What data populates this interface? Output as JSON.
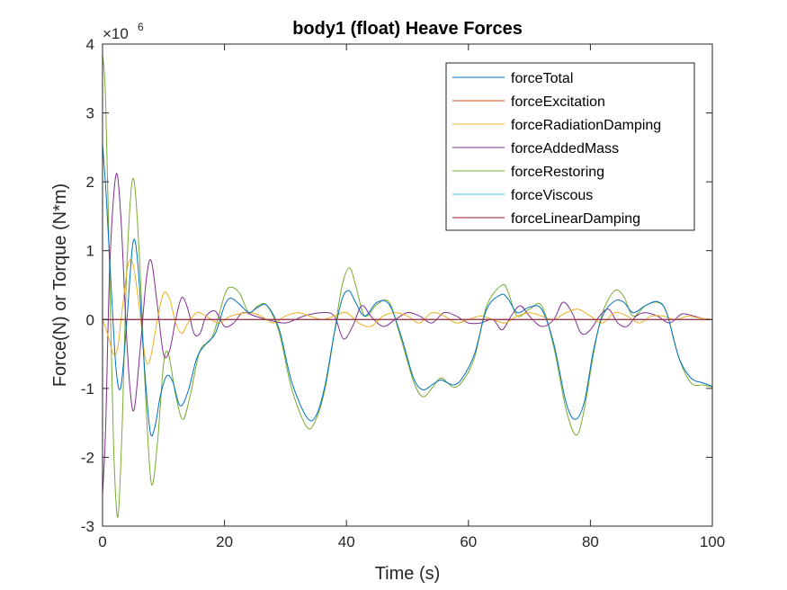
{
  "chart_data": {
    "type": "line",
    "title": "body1 (float) Heave  Forces",
    "xlabel": "Time (s)",
    "ylabel": "Force(N) or Torque (N*m)",
    "xlim": [
      0,
      100
    ],
    "ylim": [
      -3,
      4
    ],
    "y_exponent_label": "×10",
    "y_exponent_power": "6",
    "x_ticks": [
      {
        "value": 0,
        "label": "0"
      },
      {
        "value": 20,
        "label": "20"
      },
      {
        "value": 40,
        "label": "40"
      },
      {
        "value": 60,
        "label": "60"
      },
      {
        "value": 80,
        "label": "80"
      },
      {
        "value": 100,
        "label": "100"
      }
    ],
    "y_ticks": [
      {
        "value": -3,
        "label": "-3"
      },
      {
        "value": -2,
        "label": "-2"
      },
      {
        "value": -1,
        "label": "-1"
      },
      {
        "value": 0,
        "label": "0"
      },
      {
        "value": 1,
        "label": "1"
      },
      {
        "value": 2,
        "label": "2"
      },
      {
        "value": 3,
        "label": "3"
      },
      {
        "value": 4,
        "label": "4"
      }
    ],
    "grid": false,
    "legend_position": "top-right",
    "series": [
      {
        "name": "forceRestoring",
        "color": "#77AC30",
        "points": [
          [
            0,
            3.85
          ],
          [
            0.5,
            3.2
          ],
          [
            1.2,
            0.5
          ],
          [
            1.8,
            -1.8
          ],
          [
            2.5,
            -2.87
          ],
          [
            3.2,
            -1.6
          ],
          [
            4.0,
            0.8
          ],
          [
            5.0,
            2.05
          ],
          [
            6.0,
            1.0
          ],
          [
            7.0,
            -1.0
          ],
          [
            8.0,
            -2.38
          ],
          [
            9.0,
            -1.8
          ],
          [
            10.0,
            -0.65
          ],
          [
            10.8,
            -0.5
          ],
          [
            12.0,
            -1.1
          ],
          [
            13.2,
            -1.45
          ],
          [
            14.5,
            -1.05
          ],
          [
            16.0,
            -0.45
          ],
          [
            18.0,
            -0.25
          ],
          [
            20.0,
            0.35
          ],
          [
            21.0,
            0.47
          ],
          [
            22.5,
            0.38
          ],
          [
            24.0,
            0.1
          ],
          [
            25.5,
            0.2
          ],
          [
            27.0,
            0.2
          ],
          [
            29.0,
            -0.2
          ],
          [
            31.0,
            -1.0
          ],
          [
            33.5,
            -1.56
          ],
          [
            35.0,
            -1.45
          ],
          [
            36.5,
            -1.0
          ],
          [
            38.0,
            -0.2
          ],
          [
            39.3,
            0.5
          ],
          [
            40.5,
            0.75
          ],
          [
            41.5,
            0.5
          ],
          [
            43.0,
            0.05
          ],
          [
            45.0,
            0.22
          ],
          [
            47.0,
            0.25
          ],
          [
            49.0,
            -0.3
          ],
          [
            51.0,
            -0.9
          ],
          [
            52.5,
            -1.12
          ],
          [
            54.0,
            -1.0
          ],
          [
            55.5,
            -0.85
          ],
          [
            57.5,
            -0.98
          ],
          [
            59.0,
            -0.9
          ],
          [
            61.0,
            -0.55
          ],
          [
            63.0,
            0.2
          ],
          [
            65.5,
            0.5
          ],
          [
            66.5,
            0.4
          ],
          [
            68.0,
            0.05
          ],
          [
            70.0,
            0.15
          ],
          [
            72.0,
            0.2
          ],
          [
            74.0,
            -0.4
          ],
          [
            76.0,
            -1.3
          ],
          [
            77.7,
            -1.68
          ],
          [
            79.0,
            -1.3
          ],
          [
            80.5,
            -0.5
          ],
          [
            82.0,
            0.1
          ],
          [
            84.0,
            0.42
          ],
          [
            85.5,
            0.33
          ],
          [
            87.0,
            0.05
          ],
          [
            89.0,
            0.2
          ],
          [
            91.0,
            0.25
          ],
          [
            92.5,
            0.1
          ],
          [
            94.5,
            -0.55
          ],
          [
            96.5,
            -0.92
          ],
          [
            98.5,
            -0.95
          ],
          [
            100,
            -0.98
          ]
        ]
      },
      {
        "name": "forceAddedMass",
        "color": "#7E2F8E",
        "points": [
          [
            0,
            -2.55
          ],
          [
            0.5,
            -1.6
          ],
          [
            1.2,
            0.8
          ],
          [
            2.2,
            2.1
          ],
          [
            3.0,
            1.5
          ],
          [
            3.8,
            0.0
          ],
          [
            4.5,
            -1.0
          ],
          [
            5.2,
            -1.3
          ],
          [
            6.2,
            -0.4
          ],
          [
            7.2,
            0.6
          ],
          [
            8.0,
            0.85
          ],
          [
            9.0,
            0.2
          ],
          [
            10.0,
            -0.5
          ],
          [
            11.0,
            -0.45
          ],
          [
            12.0,
            0.0
          ],
          [
            13.0,
            0.32
          ],
          [
            14.0,
            0.15
          ],
          [
            15.0,
            -0.2
          ],
          [
            16.0,
            -0.2
          ],
          [
            17.0,
            0.05
          ],
          [
            18.5,
            0.12
          ],
          [
            20.0,
            -0.1
          ],
          [
            21.5,
            -0.05
          ],
          [
            23.0,
            0.1
          ],
          [
            25.0,
            0.05
          ],
          [
            27.0,
            0.0
          ],
          [
            30.0,
            -0.05
          ],
          [
            33.0,
            0.05
          ],
          [
            36.0,
            0.1
          ],
          [
            38.0,
            0.05
          ],
          [
            39.5,
            -0.28
          ],
          [
            41.0,
            -0.1
          ],
          [
            42.5,
            0.2
          ],
          [
            44.0,
            0.05
          ],
          [
            46.0,
            -0.1
          ],
          [
            48.0,
            0.0
          ],
          [
            50.0,
            0.1
          ],
          [
            52.0,
            0.05
          ],
          [
            54.0,
            -0.05
          ],
          [
            56.0,
            0.1
          ],
          [
            58.0,
            0.05
          ],
          [
            60.0,
            -0.05
          ],
          [
            62.0,
            -0.05
          ],
          [
            64.0,
            0.0
          ],
          [
            65.5,
            -0.15
          ],
          [
            67.0,
            0.05
          ],
          [
            68.5,
            0.2
          ],
          [
            70.0,
            0.05
          ],
          [
            72.0,
            -0.1
          ],
          [
            74.0,
            0.0
          ],
          [
            75.5,
            0.25
          ],
          [
            77.0,
            0.1
          ],
          [
            78.5,
            -0.2
          ],
          [
            80.0,
            -0.15
          ],
          [
            81.5,
            0.05
          ],
          [
            83.0,
            0.15
          ],
          [
            84.5,
            -0.05
          ],
          [
            86.0,
            -0.1
          ],
          [
            87.5,
            0.05
          ],
          [
            89.0,
            0.1
          ],
          [
            91.0,
            0.05
          ],
          [
            93.0,
            -0.05
          ],
          [
            95.0,
            0.08
          ],
          [
            97.0,
            0.05
          ],
          [
            99.0,
            0.0
          ],
          [
            100,
            0.0
          ]
        ]
      },
      {
        "name": "forceRadiationDamping",
        "color": "#EDB120",
        "points": [
          [
            0,
            0.0
          ],
          [
            0.8,
            -0.2
          ],
          [
            1.8,
            -0.5
          ],
          [
            2.5,
            -0.4
          ],
          [
            3.3,
            0.2
          ],
          [
            4.2,
            0.8
          ],
          [
            5.0,
            0.8
          ],
          [
            6.0,
            0.2
          ],
          [
            7.0,
            -0.55
          ],
          [
            7.8,
            -0.58
          ],
          [
            9.0,
            0.0
          ],
          [
            10.0,
            0.38
          ],
          [
            11.0,
            0.3
          ],
          [
            12.0,
            -0.05
          ],
          [
            13.0,
            -0.2
          ],
          [
            14.0,
            -0.05
          ],
          [
            15.5,
            0.1
          ],
          [
            17.0,
            0.05
          ],
          [
            19.0,
            -0.05
          ],
          [
            21.0,
            0.05
          ],
          [
            24.0,
            0.1
          ],
          [
            26.0,
            0.05
          ],
          [
            28.0,
            -0.05
          ],
          [
            30.0,
            0.05
          ],
          [
            32.0,
            0.1
          ],
          [
            34.0,
            0.05
          ],
          [
            36.0,
            0.0
          ],
          [
            38.0,
            0.05
          ],
          [
            40.0,
            0.1
          ],
          [
            42.0,
            -0.05
          ],
          [
            44.0,
            -0.1
          ],
          [
            46.0,
            0.05
          ],
          [
            48.0,
            0.1
          ],
          [
            50.0,
            0.05
          ],
          [
            52.0,
            -0.05
          ],
          [
            54.0,
            0.1
          ],
          [
            56.0,
            0.05
          ],
          [
            58.0,
            -0.05
          ],
          [
            60.0,
            0.0
          ],
          [
            62.0,
            0.05
          ],
          [
            64.0,
            0.0
          ],
          [
            66.0,
            -0.05
          ],
          [
            68.0,
            0.05
          ],
          [
            70.0,
            0.1
          ],
          [
            72.0,
            0.05
          ],
          [
            74.0,
            0.0
          ],
          [
            76.0,
            0.1
          ],
          [
            78.0,
            0.15
          ],
          [
            80.0,
            0.05
          ],
          [
            82.0,
            -0.05
          ],
          [
            84.0,
            0.1
          ],
          [
            86.0,
            0.05
          ],
          [
            88.0,
            -0.05
          ],
          [
            90.0,
            0.05
          ],
          [
            92.0,
            0.05
          ],
          [
            94.0,
            0.0
          ],
          [
            96.0,
            0.05
          ],
          [
            98.0,
            0.02
          ],
          [
            100,
            0.0
          ]
        ]
      },
      {
        "name": "forceTotal",
        "color": "#0072BD",
        "points": [
          [
            0,
            2.55
          ],
          [
            0.6,
            1.8
          ],
          [
            1.4,
            0.5
          ],
          [
            2.2,
            -0.7
          ],
          [
            3.0,
            -0.98
          ],
          [
            4.0,
            0.0
          ],
          [
            5.0,
            1.12
          ],
          [
            5.8,
            0.8
          ],
          [
            6.8,
            -0.6
          ],
          [
            7.8,
            -1.62
          ],
          [
            8.6,
            -1.55
          ],
          [
            9.5,
            -1.1
          ],
          [
            10.5,
            -0.82
          ],
          [
            11.5,
            -0.9
          ],
          [
            12.7,
            -1.25
          ],
          [
            14.0,
            -1.05
          ],
          [
            15.5,
            -0.55
          ],
          [
            17.0,
            -0.35
          ],
          [
            18.5,
            -0.2
          ],
          [
            20.0,
            0.2
          ],
          [
            21.0,
            0.31
          ],
          [
            22.5,
            0.22
          ],
          [
            24.0,
            0.1
          ],
          [
            25.5,
            0.18
          ],
          [
            27.0,
            0.2
          ],
          [
            29.0,
            -0.15
          ],
          [
            31.0,
            -0.9
          ],
          [
            33.5,
            -1.42
          ],
          [
            35.0,
            -1.4
          ],
          [
            36.5,
            -0.95
          ],
          [
            38.0,
            -0.2
          ],
          [
            39.3,
            0.3
          ],
          [
            40.4,
            0.42
          ],
          [
            41.5,
            0.25
          ],
          [
            43.0,
            0.05
          ],
          [
            45.0,
            0.25
          ],
          [
            47.0,
            0.22
          ],
          [
            49.0,
            -0.25
          ],
          [
            51.0,
            -0.85
          ],
          [
            52.5,
            -1.02
          ],
          [
            54.0,
            -0.95
          ],
          [
            55.5,
            -0.88
          ],
          [
            57.5,
            -0.95
          ],
          [
            59.0,
            -0.85
          ],
          [
            61.0,
            -0.5
          ],
          [
            63.0,
            0.15
          ],
          [
            65.3,
            0.36
          ],
          [
            66.5,
            0.3
          ],
          [
            68.0,
            0.1
          ],
          [
            70.0,
            0.18
          ],
          [
            72.0,
            0.15
          ],
          [
            74.0,
            -0.35
          ],
          [
            76.0,
            -1.2
          ],
          [
            77.5,
            -1.45
          ],
          [
            79.0,
            -1.2
          ],
          [
            80.5,
            -0.45
          ],
          [
            82.0,
            0.05
          ],
          [
            84.0,
            0.27
          ],
          [
            85.5,
            0.25
          ],
          [
            87.0,
            0.1
          ],
          [
            89.0,
            0.2
          ],
          [
            91.0,
            0.26
          ],
          [
            92.5,
            0.1
          ],
          [
            94.5,
            -0.55
          ],
          [
            96.5,
            -0.85
          ],
          [
            98.5,
            -0.92
          ],
          [
            100,
            -0.97
          ]
        ]
      },
      {
        "name": "forceExcitation",
        "color": "#D95319",
        "points": [
          [
            0,
            0.0
          ],
          [
            10,
            0.0
          ],
          [
            20,
            0.0
          ],
          [
            30,
            0.0
          ],
          [
            40,
            0.0
          ],
          [
            50,
            0.0
          ],
          [
            60,
            0.0
          ],
          [
            70,
            0.0
          ],
          [
            80,
            0.0
          ],
          [
            90,
            0.0
          ],
          [
            100,
            0.0
          ]
        ]
      },
      {
        "name": "forceViscous",
        "color": "#4DBEEE",
        "points": [
          [
            0,
            0.0
          ],
          [
            10,
            0.0
          ],
          [
            20,
            0.0
          ],
          [
            30,
            0.0
          ],
          [
            40,
            0.0
          ],
          [
            50,
            0.0
          ],
          [
            60,
            0.0
          ],
          [
            70,
            0.0
          ],
          [
            80,
            0.0
          ],
          [
            90,
            0.0
          ],
          [
            100,
            0.0
          ]
        ]
      },
      {
        "name": "forceLinearDamping",
        "color": "#A2142F",
        "points": [
          [
            0,
            0.0
          ],
          [
            10,
            0.0
          ],
          [
            20,
            0.0
          ],
          [
            30,
            0.0
          ],
          [
            40,
            0.0
          ],
          [
            50,
            0.0
          ],
          [
            60,
            0.0
          ],
          [
            70,
            0.0
          ],
          [
            80,
            0.0
          ],
          [
            90,
            0.0
          ],
          [
            100,
            0.0
          ]
        ]
      }
    ],
    "legend_order": [
      "forceTotal",
      "forceExcitation",
      "forceRadiationDamping",
      "forceAddedMass",
      "forceRestoring",
      "forceViscous",
      "forceLinearDamping"
    ]
  }
}
